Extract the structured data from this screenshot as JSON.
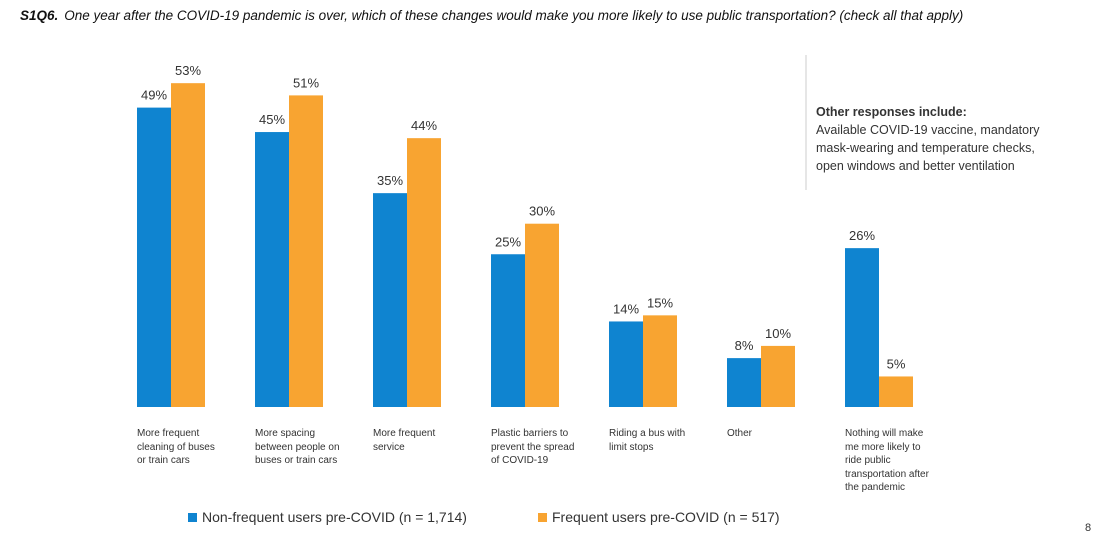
{
  "chart_data": {
    "type": "bar",
    "question_id": "S1Q6.",
    "title": "One year after the COVID-19 pandemic is over, which of these changes would make you more likely to use public transportation? (check all that apply)",
    "categories": [
      "More frequent cleaning of buses or train cars",
      "More spacing between people on buses or train cars",
      "More frequent service",
      "Plastic barriers to prevent the spread of COVID-19",
      "Riding a bus with limit stops",
      "Other",
      "Nothing will make me more likely to ride public transportation after the pandemic"
    ],
    "series": [
      {
        "name": "Non-frequent users pre-COVID (n = 1,714)",
        "color": "#0f84d0",
        "values": [
          49,
          45,
          35,
          25,
          14,
          8,
          26
        ],
        "value_labels": [
          "49%",
          "45%",
          "35%",
          "25%",
          "14%",
          "8%",
          "26%"
        ]
      },
      {
        "name": "Frequent users pre-COVID (n = 517)",
        "color": "#f8a431",
        "values": [
          53,
          51,
          44,
          30,
          15,
          10,
          5
        ],
        "value_labels": [
          "53%",
          "51%",
          "44%",
          "30%",
          "15%",
          "10%",
          "5%"
        ]
      }
    ],
    "annotation": {
      "heading": "Other responses include:",
      "text": "Available COVID-19 vaccine, mandatory mask-wearing and temperature checks, open windows and better ventilation"
    },
    "page_number": "8"
  }
}
